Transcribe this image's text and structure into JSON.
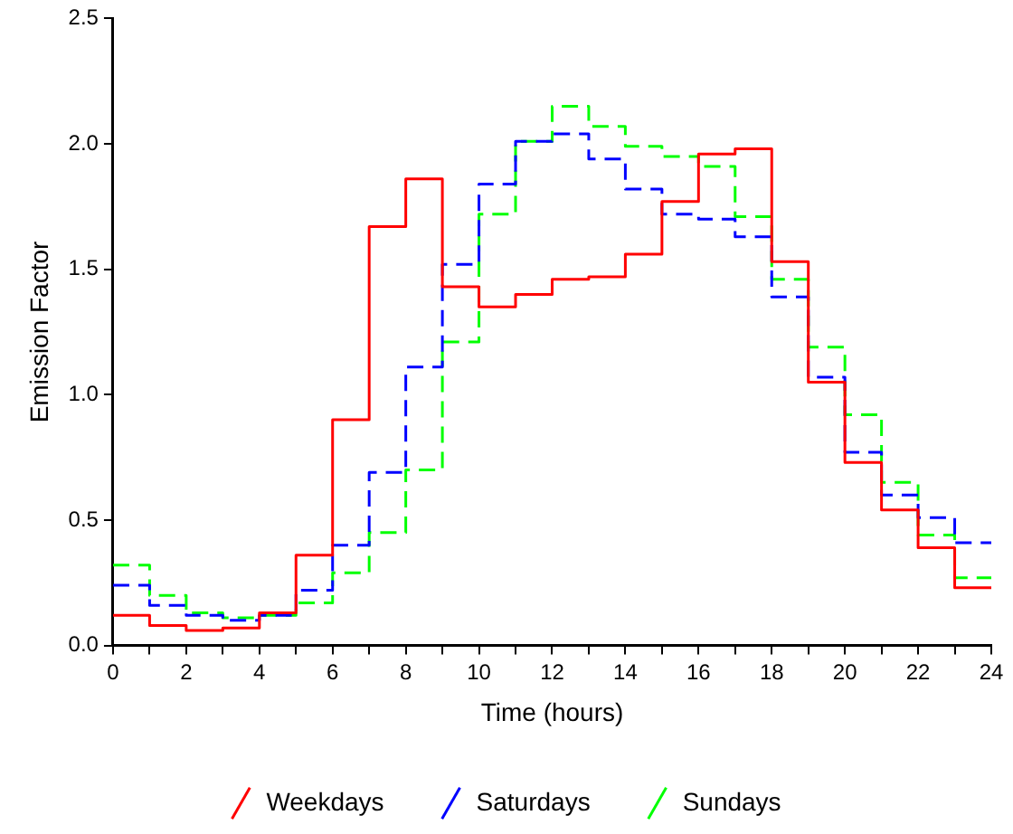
{
  "chart_data": {
    "type": "step",
    "xlabel": "Time (hours)",
    "ylabel": "Emission Factor",
    "x": [
      0,
      1,
      2,
      3,
      4,
      5,
      6,
      7,
      8,
      9,
      10,
      11,
      12,
      13,
      14,
      15,
      16,
      17,
      18,
      19,
      20,
      21,
      22,
      23,
      24
    ],
    "series": [
      {
        "name": "Weekdays",
        "color": "#ff0000",
        "line_style": "solid",
        "values": [
          0.12,
          0.08,
          0.06,
          0.07,
          0.13,
          0.36,
          0.9,
          1.67,
          1.86,
          1.43,
          1.35,
          1.4,
          1.46,
          1.47,
          1.56,
          1.77,
          1.96,
          1.98,
          1.53,
          1.05,
          0.73,
          0.54,
          0.39,
          0.23,
          0.23
        ]
      },
      {
        "name": "Saturdays",
        "color": "#0000ff",
        "line_style": "dashed",
        "values": [
          0.24,
          0.16,
          0.12,
          0.1,
          0.12,
          0.22,
          0.4,
          0.69,
          1.11,
          1.52,
          1.84,
          2.01,
          2.04,
          1.94,
          1.82,
          1.72,
          1.7,
          1.63,
          1.39,
          1.07,
          0.77,
          0.6,
          0.51,
          0.41,
          0.41
        ]
      },
      {
        "name": "Sundays",
        "color": "#00ff00",
        "line_style": "dashed",
        "values": [
          0.32,
          0.2,
          0.13,
          0.11,
          0.12,
          0.17,
          0.29,
          0.45,
          0.7,
          1.21,
          1.72,
          2.01,
          2.15,
          2.07,
          1.99,
          1.95,
          1.91,
          1.71,
          1.46,
          1.19,
          0.92,
          0.65,
          0.44,
          0.27,
          0.27
        ]
      }
    ],
    "xlim": [
      0,
      24
    ],
    "xticks": [
      0,
      {
        "value": 1,
        "label": null
      },
      2,
      {
        "value": 3,
        "label": null
      },
      4,
      {
        "value": 5,
        "label": null
      },
      6,
      {
        "value": 7,
        "label": null
      },
      8,
      {
        "value": 9,
        "label": null
      },
      10,
      {
        "value": 11,
        "label": null
      },
      12,
      {
        "value": 13,
        "label": null
      },
      14,
      {
        "value": 15,
        "label": null
      },
      16,
      {
        "value": 17,
        "label": null
      },
      18,
      {
        "value": 19,
        "label": null
      },
      20,
      {
        "value": 21,
        "label": null
      },
      22,
      {
        "value": 23,
        "label": null
      },
      24
    ],
    "ylim": [
      0,
      2.5
    ],
    "yticks": [
      {
        "value": 0,
        "label": "0.0"
      },
      0.5,
      {
        "value": 1,
        "label": "1.0"
      },
      1.5,
      {
        "value": 2,
        "label": "2.0"
      },
      2.5
    ],
    "grid": false,
    "legend": "bottom"
  }
}
